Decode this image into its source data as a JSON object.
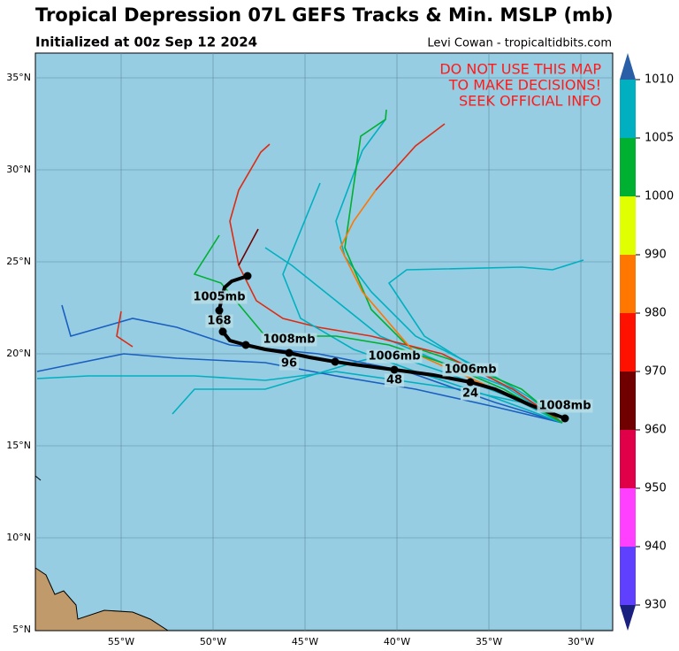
{
  "header": {
    "title": "Tropical Depression 07L GEFS Tracks & Min. MSLP (mb)",
    "subtitle": "Initialized at 00z Sep 12 2024",
    "credit": "Levi Cowan - tropicaltidbits.com"
  },
  "map": {
    "warning": [
      "DO NOT USE THIS MAP",
      "TO MAKE DECISIONS!",
      "SEEK OFFICIAL INFO"
    ],
    "lat_labels": [
      "35°N",
      "30°N",
      "25°N",
      "20°N",
      "15°N",
      "10°N",
      "5°N"
    ],
    "lon_labels": [
      "55°W",
      "50°W",
      "45°W",
      "40°W",
      "35°W",
      "30°W"
    ],
    "track_labels": [
      "1008mb",
      "1006mb",
      "24",
      "1006mb",
      "48",
      "1008mb",
      "96",
      "1005mb",
      "168"
    ]
  },
  "colorbar": {
    "ticks": [
      "1010",
      "1005",
      "1000",
      "990",
      "980",
      "970",
      "960",
      "950",
      "940",
      "930"
    ]
  }
}
